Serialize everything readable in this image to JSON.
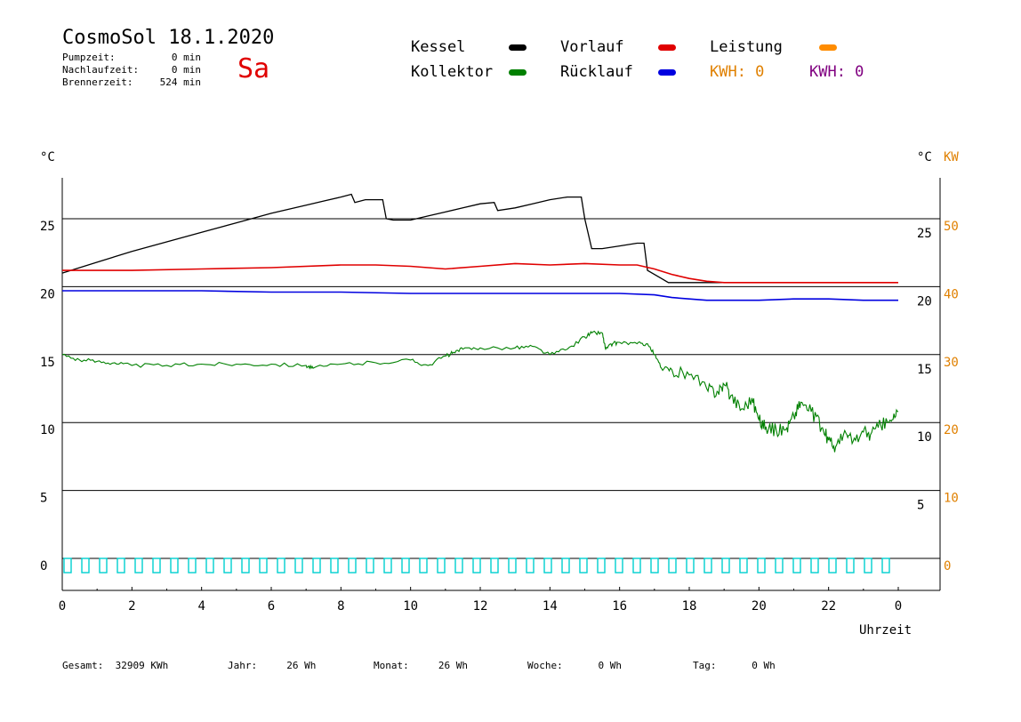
{
  "header": {
    "title": "CosmoSol 18.1.2020",
    "day": "Sa",
    "info": [
      {
        "label": "Pumpzeit:",
        "value": "0 min"
      },
      {
        "label": "Nachlaufzeit:",
        "value": "0 min"
      },
      {
        "label": "Brennerzeit:",
        "value": "524 min"
      }
    ]
  },
  "legend": {
    "kessel": {
      "label": "Kessel",
      "color": "#000000"
    },
    "kollektor": {
      "label": "Kollektor",
      "color": "#008000"
    },
    "vorlauf": {
      "label": "Vorlauf",
      "color": "#e00000"
    },
    "ruecklauf": {
      "label": "Rücklauf",
      "color": "#0000e0"
    },
    "leistung": {
      "label": "Leistung",
      "color": "#ff8c00"
    },
    "kwh_orange": {
      "label": "KWH: 0",
      "color": "#e08000"
    },
    "kwh_purple": {
      "label": "KWH: 0",
      "color": "#800080"
    }
  },
  "footer": [
    {
      "label": "Gesamt:",
      "value": "32909 KWh"
    },
    {
      "label": "Jahr:",
      "value": "26 Wh"
    },
    {
      "label": "Monat:",
      "value": "26 Wh"
    },
    {
      "label": "Woche:",
      "value": "0 Wh"
    },
    {
      "label": "Tag:",
      "value": "0 Wh"
    }
  ],
  "chart_data": {
    "type": "line",
    "xlabel": "Uhrzeit",
    "ylabel_left": "°C",
    "ylabel_right": "°C",
    "ylabel_right2": "KW",
    "x_ticks": [
      "0",
      "2",
      "4",
      "6",
      "8",
      "10",
      "12",
      "14",
      "16",
      "18",
      "20",
      "22",
      "0"
    ],
    "xlim": [
      0,
      24
    ],
    "ylim": [
      -1.5,
      28
    ],
    "y_ticks_left": [
      0,
      5,
      10,
      15,
      20,
      25
    ],
    "y_ticks_right": [
      5,
      10,
      15,
      20,
      25
    ],
    "y_ticks_kw": [
      0,
      10,
      20,
      30,
      40,
      50
    ],
    "grid_y": [
      5,
      10,
      15,
      20,
      25
    ],
    "series": [
      {
        "name": "Kessel",
        "color": "#000000",
        "x": [
          0,
          0.5,
          1,
          1.5,
          2,
          3,
          4,
          5,
          6,
          7,
          7.5,
          8,
          8.3,
          8.4,
          8.7,
          9.2,
          9.3,
          9.5,
          10,
          10.5,
          11,
          11.5,
          12,
          12.4,
          12.5,
          13,
          13.5,
          14,
          14.5,
          14.9,
          15,
          15.2,
          15.5,
          16,
          16.5,
          16.7,
          16.8,
          17.2,
          17.4,
          17.6,
          18,
          19,
          20,
          21,
          22,
          23,
          24
        ],
        "y": [
          21.0,
          21.4,
          21.8,
          22.2,
          22.6,
          23.3,
          24.0,
          24.7,
          25.4,
          26.0,
          26.3,
          26.6,
          26.8,
          26.2,
          26.4,
          26.4,
          25.0,
          24.9,
          24.9,
          25.2,
          25.5,
          25.8,
          26.1,
          26.2,
          25.6,
          25.8,
          26.1,
          26.4,
          26.6,
          26.6,
          25.0,
          22.8,
          22.8,
          23.0,
          23.2,
          23.2,
          21.2,
          20.6,
          20.3,
          20.3,
          20.3,
          20.3,
          20.3,
          20.3,
          20.3,
          20.3,
          20.3
        ]
      },
      {
        "name": "Vorlauf",
        "color": "#e00000",
        "x": [
          0,
          2,
          4,
          6,
          8,
          9,
          10,
          11,
          12,
          13,
          14,
          15,
          16,
          16.5,
          17,
          17.5,
          18,
          18.5,
          19,
          20,
          21,
          22,
          23,
          24
        ],
        "y": [
          21.2,
          21.2,
          21.3,
          21.4,
          21.6,
          21.6,
          21.5,
          21.3,
          21.5,
          21.7,
          21.6,
          21.7,
          21.6,
          21.6,
          21.3,
          20.9,
          20.6,
          20.4,
          20.3,
          20.3,
          20.3,
          20.3,
          20.3,
          20.3
        ]
      },
      {
        "name": "Rücklauf",
        "color": "#0000e0",
        "x": [
          0,
          2,
          4,
          6,
          8,
          10,
          12,
          14,
          16,
          17,
          17.5,
          18,
          18.5,
          19,
          20,
          21,
          22,
          23,
          24
        ],
        "y": [
          19.7,
          19.7,
          19.7,
          19.6,
          19.6,
          19.5,
          19.5,
          19.5,
          19.5,
          19.4,
          19.2,
          19.1,
          19.0,
          19.0,
          19.0,
          19.1,
          19.1,
          19.0,
          19.0
        ]
      },
      {
        "name": "Kollektor",
        "color": "#008000",
        "x": [
          0,
          0.5,
          1,
          1.5,
          2,
          3,
          4,
          5,
          6,
          7,
          7.2,
          8,
          9,
          10,
          10.5,
          11,
          11.2,
          11.5,
          12,
          13,
          13.5,
          14,
          14.5,
          15,
          15.2,
          15.5,
          15.6,
          15.8,
          16,
          16.5,
          16.8,
          17,
          17.2,
          17.5,
          18,
          18.5,
          18.8,
          19,
          19.2,
          19.5,
          19.8,
          20,
          20.2,
          20.5,
          20.8,
          21,
          21.2,
          21.5,
          21.8,
          22,
          22.2,
          22.5,
          22.7,
          23,
          23.2,
          23.5,
          23.8,
          24
        ],
        "y": [
          15.0,
          14.6,
          14.5,
          14.4,
          14.2,
          14.2,
          14.3,
          14.3,
          14.3,
          14.2,
          14.0,
          14.3,
          14.4,
          14.6,
          14.2,
          14.9,
          15.1,
          15.4,
          15.5,
          15.5,
          15.6,
          15.0,
          15.4,
          16.3,
          16.6,
          16.6,
          15.4,
          15.8,
          15.9,
          15.8,
          15.8,
          15.0,
          14.0,
          13.9,
          13.5,
          12.5,
          12.3,
          12.8,
          12.0,
          11.0,
          11.8,
          10.2,
          9.7,
          9.4,
          9.6,
          10.5,
          11.5,
          10.8,
          9.6,
          8.7,
          8.2,
          9.2,
          8.6,
          9.3,
          9.1,
          9.8,
          10.1,
          10.8
        ]
      }
    ],
    "pulses": {
      "name": "Brenner",
      "color": "#00d0d0",
      "count": 47
    }
  }
}
